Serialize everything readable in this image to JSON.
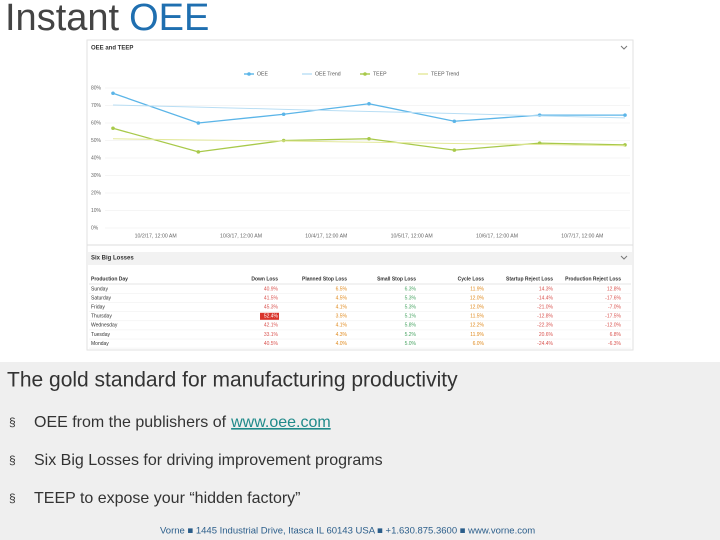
{
  "slide": {
    "title": [
      "Instant",
      "OEE"
    ],
    "heading": "The gold standard for manufacturing productivity",
    "bullet_marker": "§",
    "bullets": [
      {
        "text": "OEE from the publishers of",
        "link": "www.oee.com"
      },
      {
        "text": "Six Big Losses for driving improvement programs"
      },
      {
        "text": "TEEP to expose your “hidden factory”"
      }
    ],
    "footer": "Vorne ■ 1445 Industrial Drive, Itasca IL 60143 USA ■ +1.630.875.3600 ■ www.vorne.com"
  },
  "chart_data": {
    "type": "line",
    "title": "OEE and TEEP",
    "categories": [
      null,
      "10/2/17, 12:00 AM",
      "10/3/17, 12:00 AM",
      "10/4/17, 12:00 AM",
      "10/5/17, 12:00 AM",
      "10/6/17, 12:00 AM",
      "10/7/17, 12:00 AM"
    ],
    "series": [
      {
        "name": "OEE",
        "color": "#5bb5e8",
        "values": [
          77,
          60,
          65,
          71,
          61,
          64.5,
          64.5
        ],
        "points": true
      },
      {
        "name": "OEE Trend",
        "color": "#b9def4",
        "values": [
          70.3,
          69.1,
          67.8,
          66.6,
          65.4,
          64.1,
          62.9
        ],
        "points": false
      },
      {
        "name": "TEEP",
        "color": "#a8c94a",
        "values": [
          57,
          43.5,
          50,
          51,
          44.5,
          48.5,
          47.5
        ],
        "points": true
      },
      {
        "name": "TEEP Trend",
        "color": "#e3e89a",
        "values": [
          51,
          50.3,
          49.7,
          49,
          48.3,
          47.7,
          47
        ],
        "points": false
      }
    ],
    "ylim": [
      0,
      80
    ],
    "yticks": [
      {
        "value": 0,
        "label": "0%"
      },
      {
        "value": 10,
        "label": "10%"
      },
      {
        "value": 20,
        "label": "20%"
      },
      {
        "value": 30,
        "label": "30%"
      },
      {
        "value": 40,
        "label": "40%"
      },
      {
        "value": 50,
        "label": "50%"
      },
      {
        "value": 60,
        "label": "60%"
      },
      {
        "value": 70,
        "label": "70%"
      },
      {
        "value": 80,
        "label": "80%"
      }
    ],
    "grid": true
  },
  "losses_table": {
    "title": "Six Big Losses",
    "columns": [
      "Production Day",
      "Down Loss",
      "Planned Stop Loss",
      "Small Stop Loss",
      "Cycle Loss",
      "Startup Reject Loss",
      "Production Reject Loss"
    ],
    "rows": [
      [
        "Sunday",
        "40.9%",
        "6.5%",
        "6.3%",
        "11.9%",
        "14.3%",
        "12.8%"
      ],
      [
        "Saturday",
        "41.5%",
        "4.5%",
        "5.3%",
        "12.0%",
        "-14.4%",
        "-17.6%"
      ],
      [
        "Friday",
        "45.3%",
        "4.1%",
        "5.3%",
        "12.0%",
        "-21.0%",
        "-7.0%"
      ],
      [
        "Thursday",
        "52.4%",
        "3.5%",
        "5.1%",
        "11.5%",
        "-12.8%",
        "-17.5%"
      ],
      [
        "Wednesday",
        "42.1%",
        "4.1%",
        "5.8%",
        "12.2%",
        "-22.3%",
        "-12.0%"
      ],
      [
        "Tuesday",
        "33.1%",
        "4.3%",
        "5.2%",
        "11.9%",
        "20.6%",
        "6.8%"
      ],
      [
        "Monday",
        "40.5%",
        "4.0%",
        "5.0%",
        "6.0%",
        "-24.4%",
        "-6.3%"
      ]
    ],
    "highlight": [
      3,
      1
    ]
  }
}
